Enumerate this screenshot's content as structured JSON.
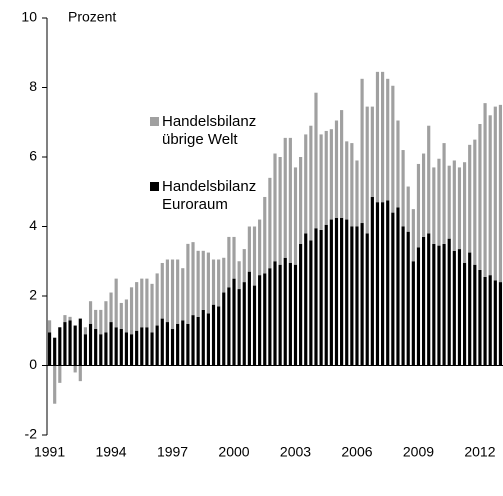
{
  "chart_data": {
    "type": "bar",
    "stacked": true,
    "ylabel": "Prozent",
    "categories": [
      "1991",
      null,
      null,
      null,
      null,
      null,
      null,
      null,
      null,
      null,
      null,
      null,
      "1994",
      null,
      null,
      null,
      null,
      null,
      null,
      null,
      null,
      null,
      null,
      null,
      "1997",
      null,
      null,
      null,
      null,
      null,
      null,
      null,
      null,
      null,
      null,
      null,
      "2000",
      null,
      null,
      null,
      null,
      null,
      null,
      null,
      null,
      null,
      null,
      null,
      "2003",
      null,
      null,
      null,
      null,
      null,
      null,
      null,
      null,
      null,
      null,
      null,
      "2006",
      null,
      null,
      null,
      null,
      null,
      null,
      null,
      null,
      null,
      null,
      null,
      "2009",
      null,
      null,
      null,
      null,
      null,
      null,
      null,
      null,
      null,
      null,
      null,
      "2012",
      null,
      null,
      null,
      null
    ],
    "series": [
      {
        "name": "Handelsbilanz Euroraum",
        "color": "#000000",
        "values": [
          0.95,
          0.8,
          1.1,
          1.25,
          1.3,
          1.15,
          1.35,
          0.9,
          1.2,
          1.05,
          0.9,
          0.95,
          1.25,
          1.1,
          1.05,
          0.95,
          0.9,
          1.0,
          1.1,
          1.1,
          0.95,
          1.15,
          1.35,
          1.25,
          1.05,
          1.2,
          1.3,
          1.2,
          1.45,
          1.4,
          1.6,
          1.5,
          1.75,
          1.7,
          2.1,
          2.25,
          2.5,
          2.2,
          2.4,
          2.7,
          2.3,
          2.6,
          2.65,
          2.8,
          3.0,
          2.9,
          3.1,
          2.95,
          2.9,
          3.5,
          3.8,
          3.6,
          3.95,
          3.9,
          4.05,
          4.2,
          4.25,
          4.25,
          4.2,
          4.0,
          4.0,
          4.1,
          3.8,
          4.85,
          4.7,
          4.7,
          4.75,
          4.4,
          4.55,
          4.0,
          3.85,
          3.0,
          3.4,
          3.7,
          3.8,
          3.5,
          3.45,
          3.5,
          3.65,
          3.3,
          3.35,
          2.95,
          3.25,
          2.9,
          2.75,
          2.55,
          2.6,
          2.45,
          2.4
        ]
      },
      {
        "name": "Handelsbilanz übrige Welt",
        "color": "#a0a0a0",
        "values": [
          0.35,
          -1.1,
          -0.5,
          0.2,
          0.1,
          -0.2,
          -0.45,
          0.2,
          0.65,
          0.55,
          0.7,
          0.9,
          0.85,
          1.4,
          0.75,
          0.95,
          1.35,
          1.4,
          1.4,
          1.4,
          1.4,
          1.5,
          1.6,
          1.8,
          2.0,
          1.85,
          1.5,
          2.3,
          2.1,
          1.9,
          1.7,
          1.75,
          1.3,
          1.35,
          1.0,
          1.45,
          1.2,
          0.8,
          0.95,
          1.3,
          1.7,
          1.6,
          2.2,
          2.6,
          3.1,
          3.1,
          3.45,
          3.6,
          2.8,
          2.5,
          2.85,
          3.3,
          3.9,
          2.75,
          2.7,
          2.6,
          2.8,
          3.1,
          2.25,
          2.4,
          1.9,
          4.15,
          3.65,
          2.6,
          3.75,
          3.75,
          3.5,
          3.65,
          2.5,
          2.2,
          1.3,
          1.5,
          2.4,
          2.4,
          3.1,
          2.2,
          2.5,
          2.9,
          2.1,
          2.6,
          2.35,
          2.9,
          3.1,
          3.6,
          4.2,
          5.0,
          4.6,
          5.0,
          5.1
        ]
      }
    ],
    "ylim": [
      -2,
      10
    ],
    "yticks": [
      -2,
      0,
      2,
      4,
      6,
      8,
      10
    ]
  }
}
